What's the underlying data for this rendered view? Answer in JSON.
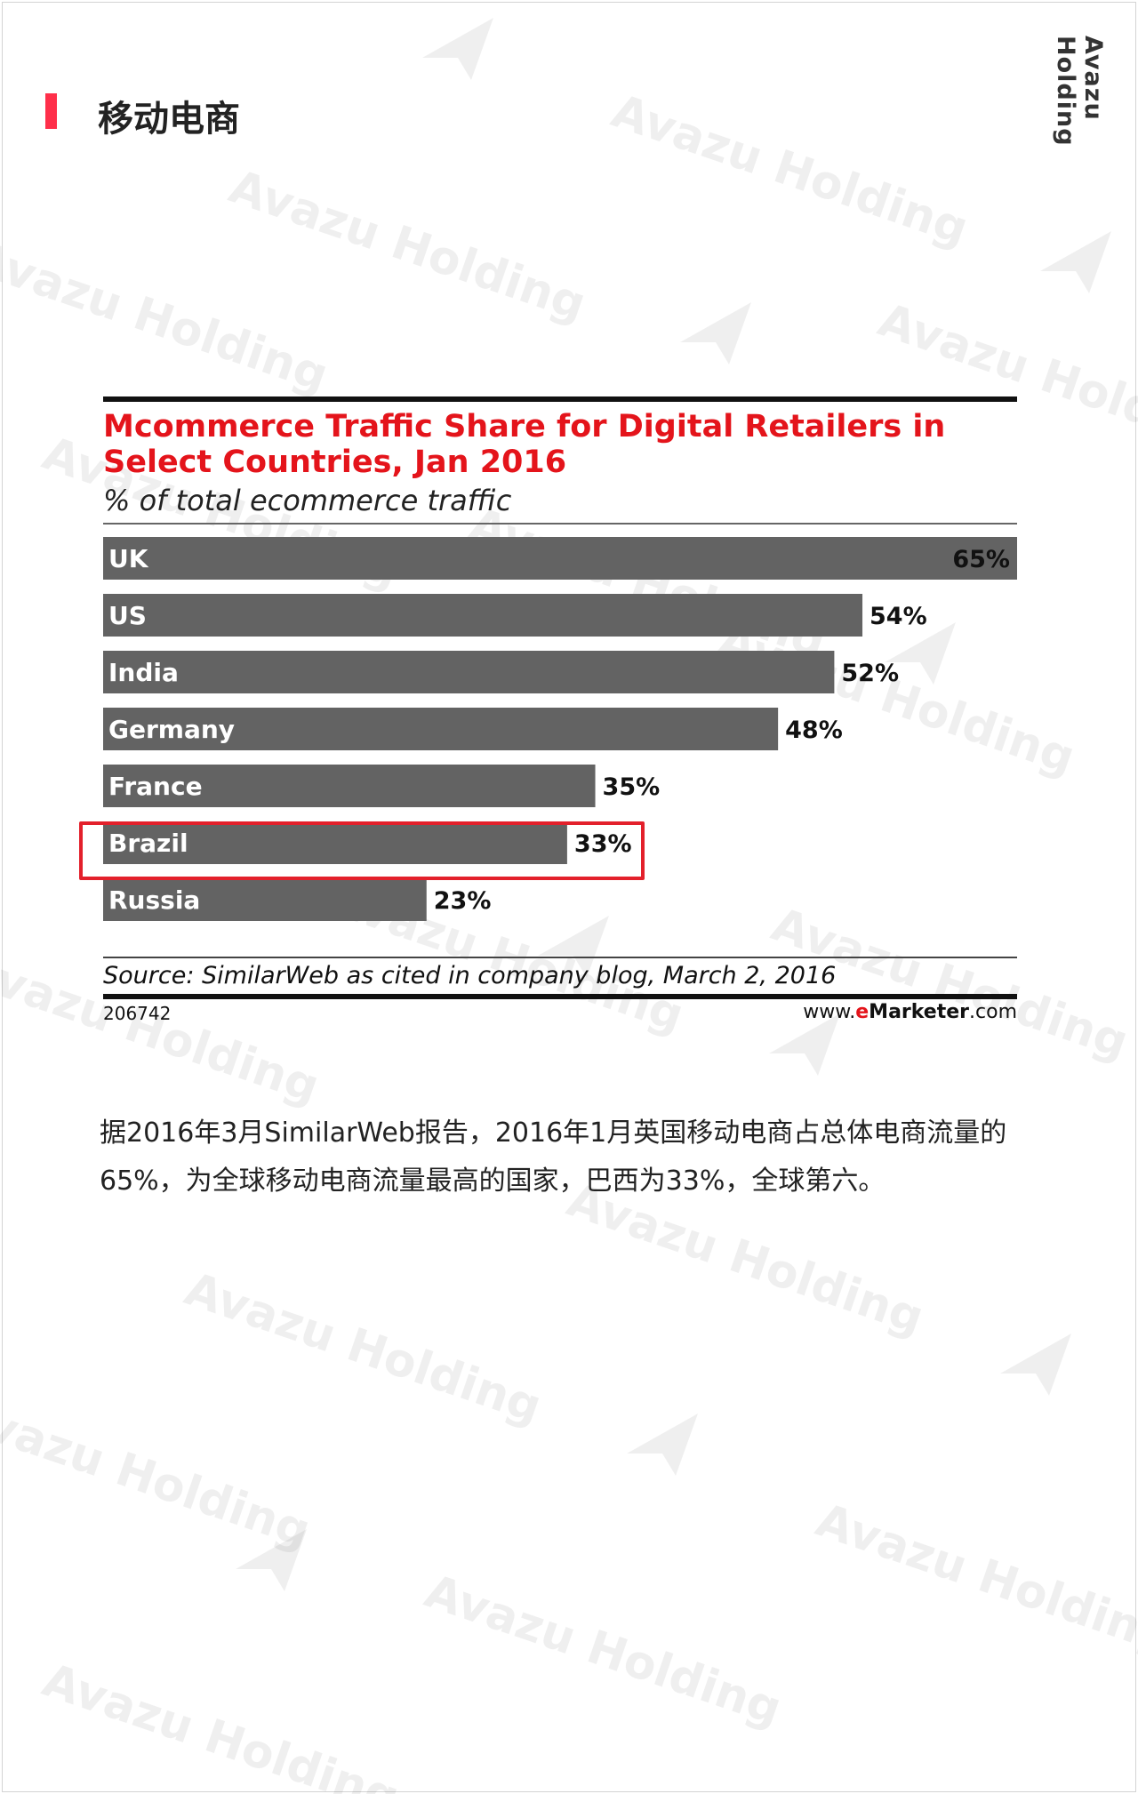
{
  "header": {
    "title": "移动电商",
    "accent_color": "#ff2f4a",
    "brand": "Avazu Holding"
  },
  "watermark": {
    "text": "Avazu Holding",
    "icon": "paper-plane-icon"
  },
  "chart_meta": {
    "source": "Source: SimilarWeb as cited in company blog, March 2, 2016",
    "id": "206742",
    "credit_prefix": "www.",
    "credit_e": "e",
    "credit_brand": "Marketer",
    "credit_suffix": ".com",
    "title_color": "#e4141b",
    "bar_color": "#636363",
    "highlight_color": "#e3202b"
  },
  "chart_data": {
    "type": "bar",
    "orientation": "horizontal",
    "title": "Mcommerce Traffic Share for Digital Retailers in Select Countries, Jan 2016",
    "subtitle": "% of total ecommerce traffic",
    "categories": [
      "UK",
      "US",
      "India",
      "Germany",
      "France",
      "Brazil",
      "Russia"
    ],
    "values": [
      65,
      54,
      52,
      48,
      35,
      33,
      23
    ],
    "value_labels": [
      "65%",
      "54%",
      "52%",
      "48%",
      "35%",
      "33%",
      "23%"
    ],
    "highlighted": "Brazil",
    "xlim": [
      0,
      65
    ],
    "grid": false,
    "legend": "none"
  },
  "caption": {
    "text": "据2016年3月SimilarWeb报告，2016年1月英国移动电商占总体电商流量的65%，为全球移动电商流量最高的国家，巴西为33%，全球第六。"
  }
}
